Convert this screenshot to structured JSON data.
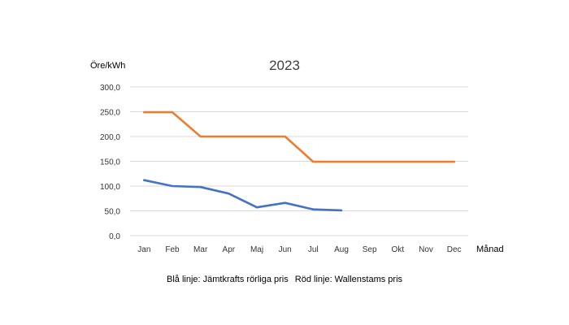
{
  "chart_data": {
    "type": "line",
    "title": "2023",
    "ylabel": "Öre/kWh",
    "xlabel": "Månad",
    "categories": [
      "Jan",
      "Feb",
      "Mar",
      "Apr",
      "Maj",
      "Jun",
      "Jul",
      "Aug",
      "Sep",
      "Okt",
      "Nov",
      "Dec"
    ],
    "ylim": [
      0,
      300
    ],
    "yticks": [
      "0,0",
      "50,0",
      "100,0",
      "150,0",
      "200,0",
      "250,0",
      "300,0"
    ],
    "grid": true,
    "series": [
      {
        "color": "#4472C4",
        "values": [
          112,
          100,
          98,
          85,
          57,
          66,
          53,
          51,
          null,
          null,
          null,
          null
        ]
      },
      {
        "color": "#ED7D31",
        "values": [
          249,
          249,
          200,
          200,
          200,
          200,
          149,
          149,
          149,
          149,
          149,
          149
        ]
      }
    ],
    "captions": [
      "Blå linje: Jämtkrafts rörliga pris",
      "Röd linje: Wallenstams pris"
    ]
  }
}
